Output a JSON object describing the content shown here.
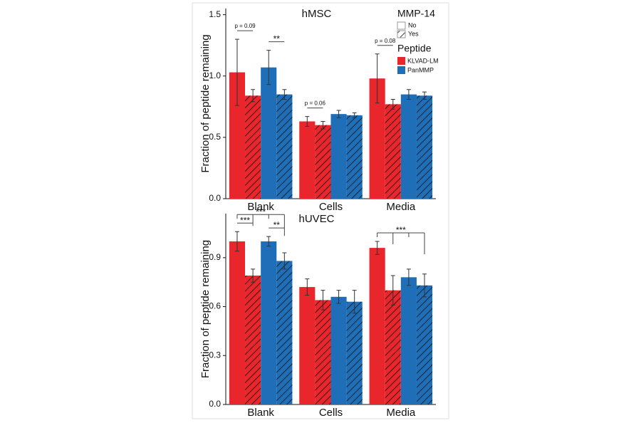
{
  "chart_data": [
    {
      "type": "bar",
      "title": "hMSC",
      "y_label": "Fraction of peptide remaining",
      "categories": [
        "Blank",
        "Cells",
        "Media"
      ],
      "ylim": [
        0,
        1.55
      ],
      "yticks": [
        {
          "value": 0,
          "label": "0.0"
        },
        0.5,
        {
          "value": 1,
          "label": "1.0"
        },
        1.5
      ],
      "series": [
        {
          "color": "#e8262b",
          "hatch": false,
          "values": [
            1.03,
            0.63,
            0.98
          ],
          "errors": [
            0.27,
            0.04,
            0.2
          ]
        },
        {
          "color": "#e8262b",
          "hatch": true,
          "values": [
            0.84,
            0.6,
            0.77
          ],
          "errors": [
            0.05,
            0.03,
            0.04
          ]
        },
        {
          "color": "#1f6fb8",
          "hatch": false,
          "values": [
            1.07,
            0.69,
            0.85
          ],
          "errors": [
            0.14,
            0.03,
            0.04
          ]
        },
        {
          "color": "#1f6fb8",
          "hatch": true,
          "values": [
            0.85,
            0.68,
            0.84
          ],
          "errors": [
            0.04,
            0.02,
            0.03
          ]
        }
      ],
      "annotations": [
        {
          "text": "p = 0.09",
          "category": 0,
          "from": 0,
          "to": 1
        },
        {
          "text": "**",
          "category": 0,
          "from": 2,
          "to": 3
        },
        {
          "text": "p = 0.06",
          "category": 1,
          "from": 0,
          "to": 1
        },
        {
          "text": "p = 0.08",
          "category": 2,
          "from": 0,
          "to": 1
        }
      ],
      "legend": {
        "mmp14": {
          "title": "MMP-14",
          "items": [
            "No",
            "Yes"
          ]
        },
        "peptide": {
          "title": "Peptide",
          "items": [
            "KLVAD-LM",
            "PanMMP"
          ],
          "colors": [
            "#e8262b",
            "#1f6fb8"
          ]
        }
      }
    },
    {
      "type": "bar",
      "title": "hUVEC",
      "y_label": "Fraction of peptide remaining",
      "categories": [
        "Blank",
        "Cells",
        "Media"
      ],
      "ylim": [
        0,
        1.17
      ],
      "yticks": [
        {
          "value": 0,
          "label": "0.0"
        },
        0.3,
        0.6,
        0.9
      ],
      "series": [
        {
          "color": "#e8262b",
          "hatch": false,
          "values": [
            1.0,
            0.72,
            0.96
          ],
          "errors": [
            0.06,
            0.05,
            0.04
          ]
        },
        {
          "color": "#e8262b",
          "hatch": true,
          "values": [
            0.79,
            0.64,
            0.7
          ],
          "errors": [
            0.04,
            0.06,
            0.09
          ]
        },
        {
          "color": "#1f6fb8",
          "hatch": false,
          "values": [
            1.0,
            0.66,
            0.78
          ],
          "errors": [
            0.03,
            0.04,
            0.05
          ]
        },
        {
          "color": "#1f6fb8",
          "hatch": true,
          "values": [
            0.88,
            0.63,
            0.73
          ],
          "errors": [
            0.05,
            0.07,
            0.07
          ]
        }
      ],
      "annotations": [
        {
          "text": "***",
          "category": 0,
          "from": 0,
          "to": 1
        },
        {
          "text": "***",
          "category": 0,
          "from": 0,
          "to": 3
        },
        {
          "text": "**",
          "category": 0,
          "from": 2,
          "to": 3
        },
        {
          "text": "***",
          "category": 2,
          "from": 0,
          "to": 3
        }
      ]
    }
  ]
}
